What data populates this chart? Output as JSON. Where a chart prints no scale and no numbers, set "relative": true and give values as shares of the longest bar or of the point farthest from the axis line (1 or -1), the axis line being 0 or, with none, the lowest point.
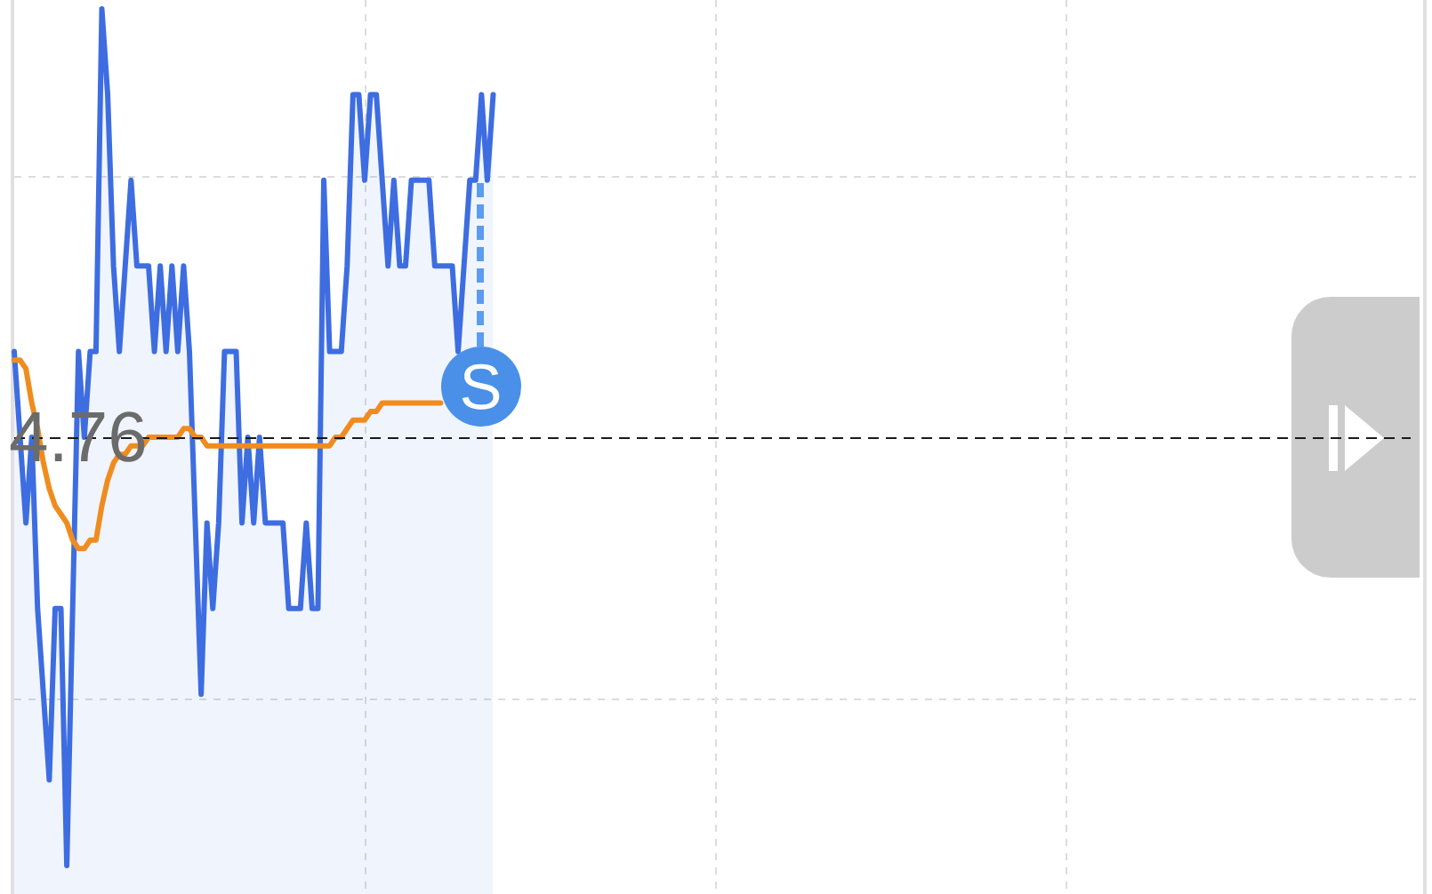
{
  "chart_data": {
    "type": "line",
    "relative": true,
    "categories": [
      null,
      null,
      null,
      null,
      null,
      null,
      null,
      null,
      null,
      null,
      null,
      null,
      null,
      null,
      null,
      null,
      null,
      null,
      null,
      null,
      null,
      null,
      null,
      null,
      null,
      null,
      null,
      null,
      null,
      null,
      null,
      null,
      null,
      null,
      null,
      null,
      null,
      null,
      null,
      null,
      null,
      null,
      null,
      null,
      null,
      null,
      null,
      null,
      null,
      null,
      null,
      null,
      null,
      null,
      null,
      null,
      null,
      null,
      null,
      null,
      null,
      null,
      null,
      null,
      null,
      null,
      null,
      null,
      null,
      null,
      null,
      null,
      null,
      null,
      null,
      null,
      null,
      null,
      null,
      null,
      null,
      null,
      null,
      null,
      null,
      null,
      null,
      null,
      null,
      null,
      null,
      null,
      null,
      null,
      null,
      null,
      null,
      null,
      null,
      null,
      null,
      null,
      null,
      null,
      null,
      null,
      null,
      null,
      null,
      null,
      null,
      null,
      null,
      null,
      null,
      null,
      null,
      null,
      null,
      null,
      null,
      null,
      null,
      null,
      null,
      null,
      null,
      null,
      null,
      null,
      null,
      null,
      null,
      null,
      null,
      null,
      null,
      null,
      null,
      null,
      null,
      null,
      null,
      null,
      null,
      null,
      null,
      null,
      null,
      null,
      null,
      null,
      null,
      null,
      null,
      null,
      null,
      null,
      null,
      null,
      null,
      null,
      null,
      null,
      null,
      null,
      null,
      null,
      null,
      null,
      null,
      null,
      null,
      null,
      null,
      null,
      null,
      null,
      null,
      null,
      null,
      null,
      null,
      null,
      null,
      null,
      null,
      null,
      null,
      null,
      null,
      null,
      null,
      null,
      null,
      null,
      null,
      null,
      null,
      null,
      null,
      null,
      null,
      null,
      null,
      null,
      null,
      null,
      null,
      null,
      null,
      null,
      null,
      null,
      null,
      null,
      null,
      null,
      null,
      null,
      null,
      null,
      null,
      null,
      null,
      null,
      null,
      null,
      null,
      null,
      null,
      null,
      null,
      null,
      null,
      null,
      null,
      null,
      null,
      null,
      null
    ],
    "series": [
      {
        "type": "area",
        "color": "#3d6de0",
        "values": [
          0.6,
          0.5,
          0.4,
          0.5,
          0.3,
          0.2,
          0.1,
          0.3,
          0.3,
          0,
          0.3,
          0.6,
          0.5,
          0.6,
          0.6,
          1,
          0.9,
          0.7,
          0.6,
          0.7,
          0.8,
          0.7,
          0.7,
          0.7,
          0.6,
          0.7,
          0.6,
          0.7,
          0.6,
          0.7,
          0.6,
          0.4,
          0.2,
          0.4,
          0.3,
          0.4,
          0.6,
          0.6,
          0.6,
          0.4,
          0.5,
          0.4,
          0.5,
          0.4,
          0.4,
          0.4,
          0.4,
          0.3,
          0.3,
          0.3,
          0.4,
          0.3,
          0.3,
          0.8,
          0.6,
          0.6,
          0.6,
          0.7,
          0.9,
          0.9,
          0.8,
          0.9,
          0.9,
          0.8,
          0.7,
          0.8,
          0.7,
          0.7,
          0.8,
          0.8,
          0.8,
          0.8,
          0.7,
          0.7,
          0.7,
          0.7,
          0.6,
          0.7,
          0.8,
          0.8,
          0.9,
          0.8,
          0.9,
          null,
          null,
          null,
          null,
          null,
          null,
          null,
          null,
          null,
          null,
          null,
          null,
          null,
          null,
          null,
          null,
          null,
          null,
          null,
          null,
          null,
          null,
          null,
          null,
          null,
          null,
          null,
          null,
          null,
          null,
          null,
          null,
          null,
          null,
          null,
          null,
          null,
          null,
          null,
          null,
          null,
          null,
          null,
          null,
          null,
          null,
          null,
          null,
          null,
          null,
          null,
          null,
          null,
          null,
          null,
          null,
          null,
          null,
          null,
          null,
          null,
          null,
          null,
          null,
          null,
          null,
          null,
          null,
          null,
          null,
          null,
          null,
          null,
          null,
          null,
          null,
          null,
          null,
          null,
          null,
          null,
          null,
          null,
          null,
          null,
          null,
          null,
          null,
          null,
          null,
          null,
          null,
          null,
          null,
          null,
          null,
          null,
          null,
          null,
          null,
          null,
          null,
          null,
          null,
          null,
          null,
          null,
          null,
          null,
          null,
          null,
          null,
          null,
          null,
          null,
          null,
          null,
          null,
          null,
          null,
          null,
          null,
          null,
          null,
          null,
          null,
          null,
          null,
          null,
          null,
          null,
          null,
          null,
          null,
          null,
          null,
          null,
          null,
          null,
          null,
          null,
          null,
          null,
          null,
          null,
          null,
          null,
          null,
          null,
          null,
          null,
          null,
          null,
          null,
          null,
          null,
          null,
          null
        ]
      },
      {
        "type": "line",
        "color": "#f08c1e",
        "values": [
          0.59,
          0.59,
          0.58,
          0.54,
          0.51,
          0.47,
          0.44,
          0.42,
          0.41,
          0.4,
          0.38,
          0.37,
          0.37,
          0.38,
          0.38,
          0.42,
          0.45,
          0.47,
          0.48,
          0.48,
          0.49,
          0.49,
          0.49,
          0.5,
          0.5,
          0.5,
          0.5,
          0.5,
          0.5,
          0.51,
          0.51,
          0.5,
          0.5,
          0.49,
          0.49,
          0.49,
          0.49,
          0.49,
          0.49,
          0.49,
          0.49,
          0.49,
          0.49,
          0.49,
          0.49,
          0.49,
          0.49,
          0.49,
          0.49,
          0.49,
          0.49,
          0.49,
          0.49,
          0.49,
          0.49,
          0.5,
          0.5,
          0.51,
          0.52,
          0.52,
          0.52,
          0.53,
          0.53,
          0.54,
          0.54,
          0.54,
          0.54,
          0.54,
          0.54,
          0.54,
          0.54,
          0.54,
          0.54,
          0.54,
          null,
          null,
          null,
          null,
          null,
          null,
          null,
          null,
          null,
          null,
          null,
          null,
          null,
          null,
          null,
          null,
          null,
          null,
          null,
          null,
          null,
          null,
          null,
          null,
          null,
          null,
          null,
          null,
          null,
          null,
          null,
          null,
          null,
          null,
          null,
          null,
          null,
          null,
          null,
          null,
          null,
          null,
          null,
          null,
          null,
          null,
          null,
          null,
          null,
          null,
          null,
          null,
          null,
          null,
          null,
          null,
          null,
          null,
          null,
          null,
          null,
          null,
          null,
          null,
          null,
          null,
          null,
          null,
          null,
          null,
          null,
          null,
          null,
          null,
          null,
          null,
          null,
          null,
          null,
          null,
          null,
          null,
          null,
          null,
          null,
          null,
          null,
          null,
          null,
          null,
          null,
          null,
          null,
          null,
          null,
          null,
          null,
          null,
          null,
          null,
          null,
          null,
          null,
          null,
          null,
          null,
          null,
          null,
          null,
          null,
          null,
          null,
          null,
          null,
          null,
          null,
          null,
          null,
          null,
          null,
          null,
          null,
          null,
          null,
          null,
          null,
          null,
          null,
          null,
          null,
          null,
          null,
          null,
          null,
          null,
          null,
          null,
          null,
          null,
          null,
          null,
          null,
          null,
          null,
          null,
          null,
          null,
          null,
          null,
          null,
          null,
          null,
          null,
          null,
          null,
          null,
          null,
          null,
          null,
          null,
          null,
          null,
          null,
          null,
          null,
          null,
          null
        ]
      }
    ],
    "ref_lines": [
      {
        "axis": "y",
        "value": 0.5,
        "color": "#1a1a1a",
        "line_style": "dashed"
      }
    ],
    "annotations": [
      "4.76",
      {
        "text": "S",
        "y": 0.8
      }
    ],
    "grid": true,
    "legend": false
  }
}
